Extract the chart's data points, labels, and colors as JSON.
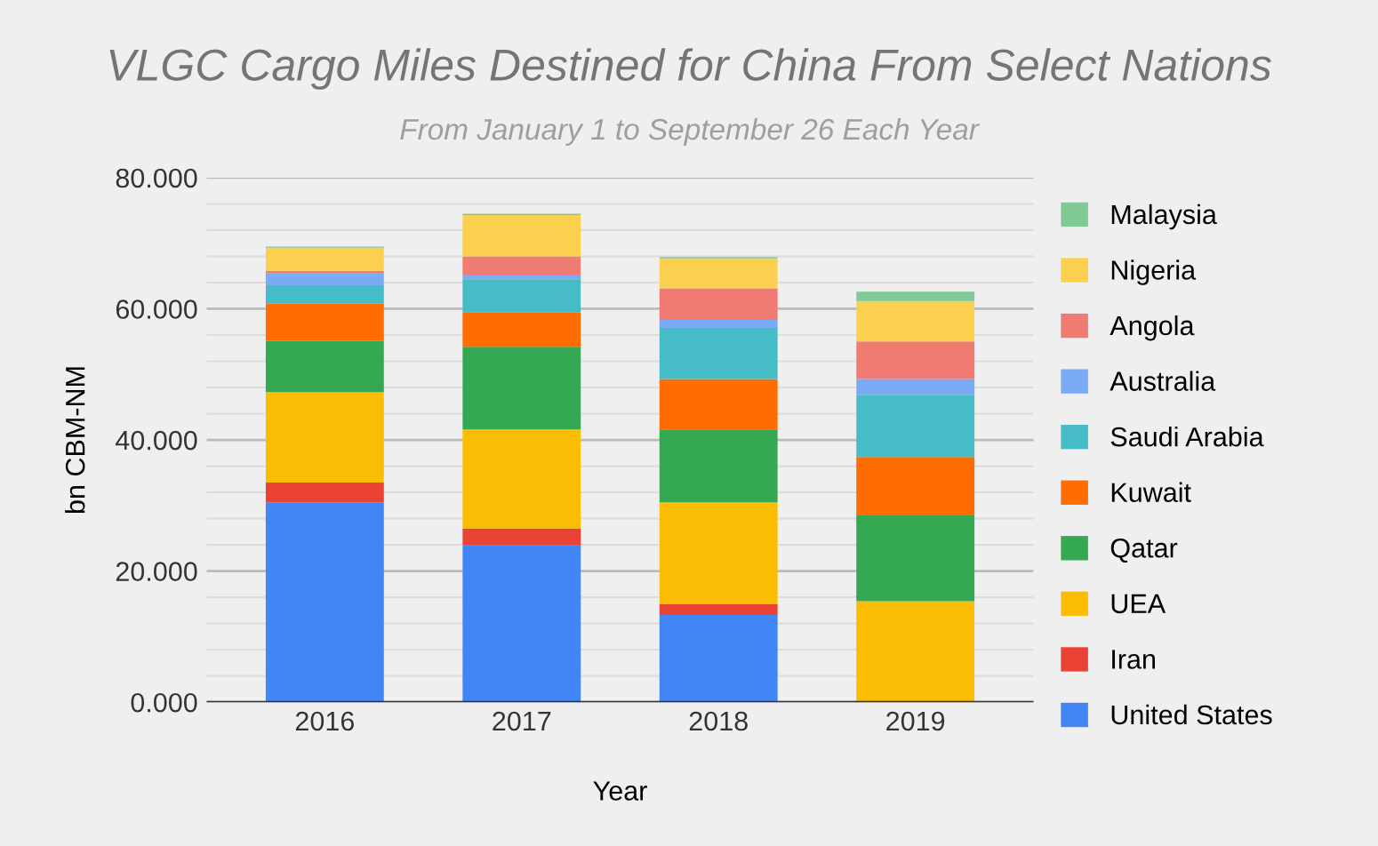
{
  "chart_data": {
    "type": "bar",
    "stacked": true,
    "title": "VLGC Cargo Miles Destined for China From Select Nations",
    "subtitle": "From January 1 to September 26 Each Year",
    "xlabel": "Year",
    "ylabel": "bn CBM-NM",
    "categories": [
      "2016",
      "2017",
      "2018",
      "2019"
    ],
    "series": [
      {
        "name": "United States",
        "color": "#4285f4",
        "values": [
          30.5,
          23.9,
          13.3,
          0
        ]
      },
      {
        "name": "Iran",
        "color": "#ea4335",
        "values": [
          3.0,
          2.6,
          1.7,
          0
        ]
      },
      {
        "name": "UEA",
        "color": "#fbbc04",
        "values": [
          13.8,
          15.1,
          15.5,
          15.4
        ]
      },
      {
        "name": "Qatar",
        "color": "#34a853",
        "values": [
          7.8,
          12.6,
          11.1,
          13.1
        ]
      },
      {
        "name": "Kuwait",
        "color": "#ff6d01",
        "values": [
          5.7,
          5.3,
          7.7,
          8.9
        ]
      },
      {
        "name": "Saudi Arabia",
        "color": "#46bdc6",
        "values": [
          2.8,
          5.0,
          7.8,
          9.5
        ]
      },
      {
        "name": "Australia",
        "color": "#7baaf7",
        "values": [
          1.8,
          0.7,
          1.2,
          2.4
        ]
      },
      {
        "name": "Angola",
        "color": "#f07b72",
        "values": [
          0.4,
          2.8,
          4.8,
          5.7
        ]
      },
      {
        "name": "Nigeria",
        "color": "#fcd04f",
        "values": [
          3.5,
          6.3,
          4.6,
          6.2
        ]
      },
      {
        "name": "Malaysia",
        "color": "#81c995",
        "values": [
          0.2,
          0.2,
          0.2,
          1.4
        ]
      }
    ],
    "ylim": [
      0,
      80
    ],
    "yticks": [
      {
        "value": 0,
        "label": "0.000"
      },
      {
        "value": 4,
        "label": null
      },
      {
        "value": 8,
        "label": null
      },
      {
        "value": 12,
        "label": null
      },
      {
        "value": 16,
        "label": null
      },
      {
        "value": 20,
        "label": "20.000"
      },
      {
        "value": 24,
        "label": null
      },
      {
        "value": 28,
        "label": null
      },
      {
        "value": 32,
        "label": null
      },
      {
        "value": 36,
        "label": null
      },
      {
        "value": 40,
        "label": "40.000"
      },
      {
        "value": 44,
        "label": null
      },
      {
        "value": 48,
        "label": null
      },
      {
        "value": 52,
        "label": null
      },
      {
        "value": 56,
        "label": null
      },
      {
        "value": 60,
        "label": "60.000"
      },
      {
        "value": 64,
        "label": null
      },
      {
        "value": 68,
        "label": null
      },
      {
        "value": 72,
        "label": null
      },
      {
        "value": 76,
        "label": null
      },
      {
        "value": 80,
        "label": "80.000"
      }
    ],
    "grid": "y",
    "legend": "right"
  }
}
